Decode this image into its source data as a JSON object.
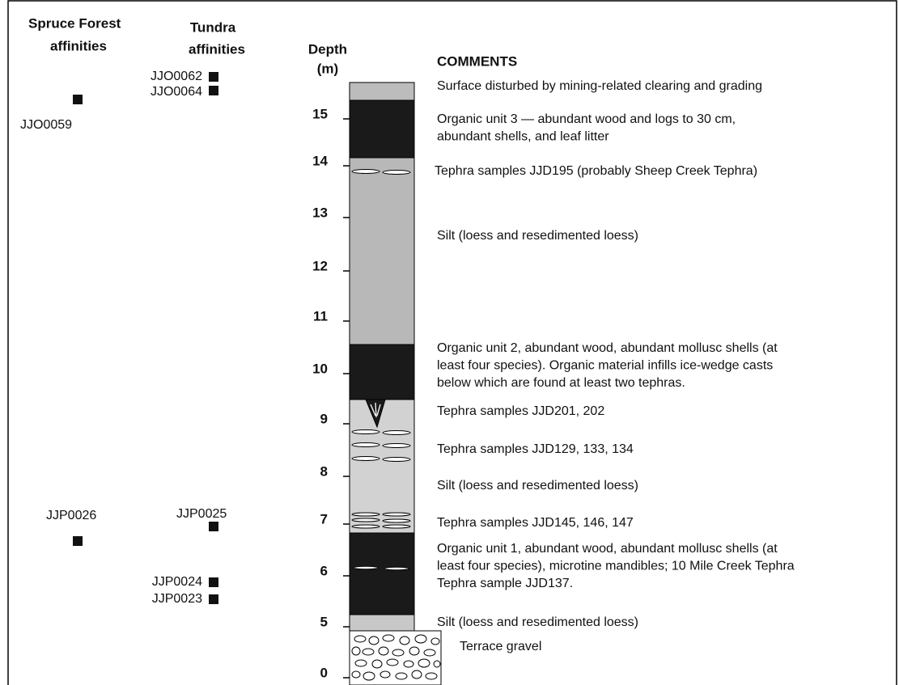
{
  "header": {
    "spruce_title": "Spruce Forest",
    "spruce_subtitle": "affinities",
    "tundra_title": "Tundra",
    "tundra_subtitle": "affinities",
    "depth_title": "Depth",
    "depth_unit": "(m)",
    "comments_title": "COMMENTS"
  },
  "depth_labels": [
    "15",
    "14",
    "13",
    "12",
    "11",
    "10",
    "9",
    "8",
    "7",
    "6",
    "5",
    "0"
  ],
  "samples": [
    "JJO0062",
    "JJO0064",
    "JJO0059",
    "JJP0026",
    "JJP0025",
    "JJP0024",
    "JJP0023"
  ],
  "comments": [
    {
      "lines": [
        "Surface disturbed by mining-related clearing and grading"
      ]
    },
    {
      "lines": [
        "Organic unit 3 — abundant wood and logs to 30 cm,",
        "abundant shells, and leaf litter"
      ]
    },
    {
      "lines": [
        "Tephra samples JJD195 (probably Sheep Creek Tephra)"
      ]
    },
    {
      "lines": [
        "Silt (loess and resedimented loess)"
      ]
    },
    {
      "lines": [
        "Organic unit 2, abundant wood, abundant mollusc shells (at",
        "least four species). Organic material infills ice-wedge casts",
        "below which are found at least two tephras."
      ]
    },
    {
      "lines": [
        "Tephra samples JJD201, 202"
      ]
    },
    {
      "lines": [
        "Tephra samples JJD129, 133, 134"
      ]
    },
    {
      "lines": [
        "Silt (loess and resedimented loess)"
      ]
    },
    {
      "lines": [
        "Tephra samples JJD145, 146, 147"
      ]
    },
    {
      "lines": [
        "Organic unit 1, abundant wood, abundant mollusc shells (at",
        "least four species), microtine mandibles; 10 Mile Creek Tephra",
        "Tephra sample JJD137."
      ]
    },
    {
      "lines": [
        "Silt (loess and resedimented loess)"
      ]
    },
    {
      "lines": [
        "Terrace gravel"
      ]
    }
  ]
}
